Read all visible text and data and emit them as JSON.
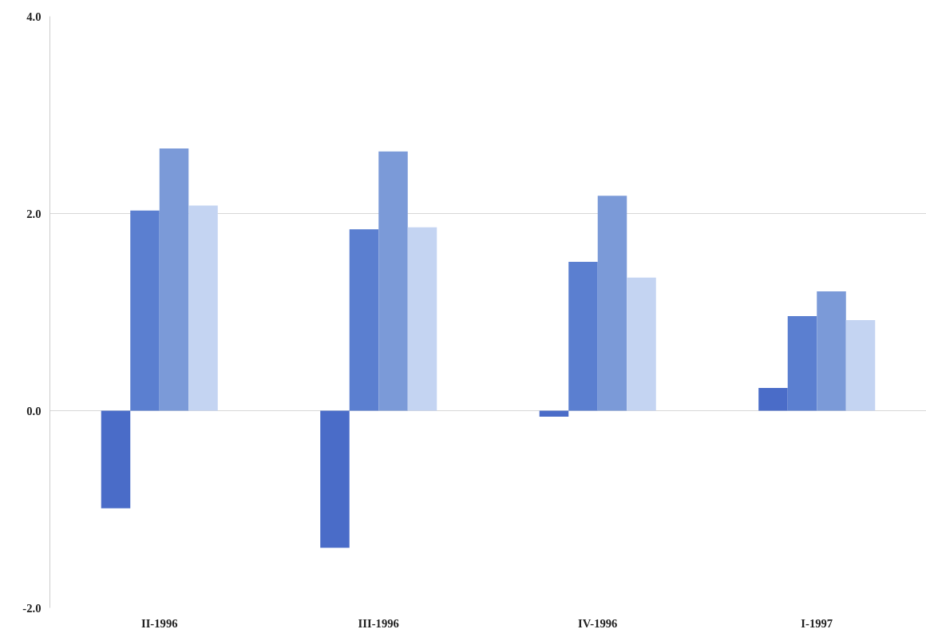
{
  "chart_data": {
    "type": "bar",
    "categories": [
      "II-1996",
      "III-1996",
      "IV-1996",
      "I-1997"
    ],
    "series": [
      {
        "color": "#4a6cc8",
        "values": [
          -0.99,
          -1.39,
          -0.06,
          0.23
        ]
      },
      {
        "color": "#5b7fd0",
        "values": [
          2.03,
          1.84,
          1.51,
          0.96
        ]
      },
      {
        "color": "#7b9ad8",
        "values": [
          2.66,
          2.63,
          2.18,
          1.21
        ]
      },
      {
        "color": "#c4d4f2",
        "values": [
          2.08,
          1.86,
          1.35,
          0.92
        ]
      }
    ],
    "ylim": [
      -2.0,
      4.0
    ],
    "yticks": [
      {
        "value": -2.0,
        "label": "-2.0"
      },
      {
        "value": 0.0,
        "label": "0.0"
      },
      {
        "value": 2.0,
        "label": "2.0"
      },
      {
        "value": 4.0,
        "label": "4.0"
      }
    ],
    "grid": "y"
  }
}
